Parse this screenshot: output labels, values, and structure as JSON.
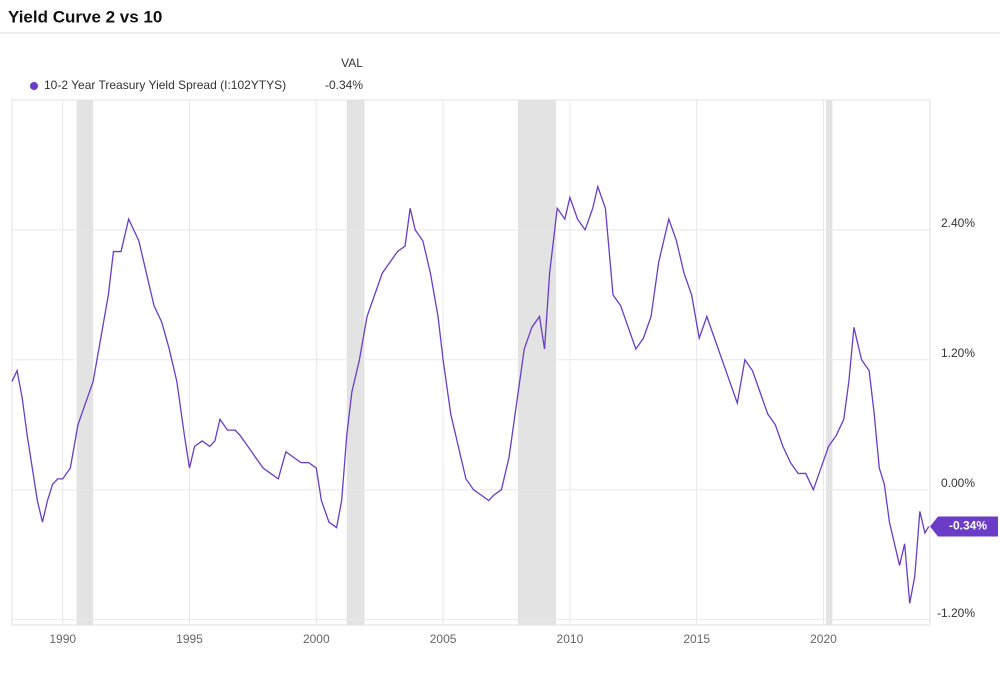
{
  "chart_data": {
    "type": "line",
    "title": "Yield Curve 2 vs 10",
    "legend_header": "VAL",
    "x": [
      1988.0,
      1988.2,
      1988.4,
      1988.6,
      1988.8,
      1989.0,
      1989.2,
      1989.4,
      1989.6,
      1989.8,
      1990.0,
      1990.3,
      1990.6,
      1990.9,
      1991.2,
      1991.5,
      1991.8,
      1992.0,
      1992.3,
      1992.6,
      1992.8,
      1993.0,
      1993.3,
      1993.6,
      1993.9,
      1994.2,
      1994.5,
      1994.8,
      1995.0,
      1995.2,
      1995.5,
      1995.8,
      1996.0,
      1996.2,
      1996.5,
      1996.8,
      1997.0,
      1997.3,
      1997.6,
      1997.9,
      1998.2,
      1998.5,
      1998.8,
      1999.1,
      1999.4,
      1999.7,
      2000.0,
      2000.2,
      2000.5,
      2000.8,
      2001.0,
      2001.2,
      2001.4,
      2001.7,
      2002.0,
      2002.3,
      2002.6,
      2002.9,
      2003.2,
      2003.5,
      2003.7,
      2003.9,
      2004.2,
      2004.5,
      2004.8,
      2005.0,
      2005.3,
      2005.6,
      2005.9,
      2006.2,
      2006.5,
      2006.8,
      2007.0,
      2007.3,
      2007.6,
      2007.9,
      2008.2,
      2008.5,
      2008.8,
      2009.0,
      2009.2,
      2009.5,
      2009.8,
      2010.0,
      2010.3,
      2010.6,
      2010.9,
      2011.1,
      2011.4,
      2011.7,
      2012.0,
      2012.3,
      2012.6,
      2012.9,
      2013.2,
      2013.5,
      2013.9,
      2014.2,
      2014.5,
      2014.8,
      2015.1,
      2015.4,
      2015.7,
      2016.0,
      2016.3,
      2016.6,
      2016.9,
      2017.2,
      2017.5,
      2017.8,
      2018.1,
      2018.4,
      2018.7,
      2019.0,
      2019.3,
      2019.6,
      2019.9,
      2020.2,
      2020.5,
      2020.8,
      2021.0,
      2021.2,
      2021.5,
      2021.8,
      2022.0,
      2022.2,
      2022.4,
      2022.6,
      2022.8,
      2023.0,
      2023.2,
      2023.4,
      2023.6,
      2023.8,
      2024.0,
      2024.15
    ],
    "series": [
      {
        "name": "10-2 Year Treasury Yield Spread (I:102YTYS)",
        "color": "#6a3cc7",
        "values": [
          1.0,
          1.1,
          0.85,
          0.5,
          0.2,
          -0.1,
          -0.3,
          -0.1,
          0.05,
          0.1,
          0.1,
          0.2,
          0.6,
          0.8,
          1.0,
          1.4,
          1.8,
          2.2,
          2.2,
          2.5,
          2.4,
          2.3,
          2.0,
          1.7,
          1.55,
          1.3,
          1.0,
          0.5,
          0.2,
          0.4,
          0.45,
          0.4,
          0.45,
          0.65,
          0.55,
          0.55,
          0.5,
          0.4,
          0.3,
          0.2,
          0.15,
          0.1,
          0.35,
          0.3,
          0.25,
          0.25,
          0.2,
          -0.1,
          -0.3,
          -0.35,
          -0.1,
          0.5,
          0.9,
          1.2,
          1.6,
          1.8,
          2.0,
          2.1,
          2.2,
          2.25,
          2.6,
          2.4,
          2.3,
          2.0,
          1.6,
          1.2,
          0.7,
          0.4,
          0.1,
          0.0,
          -0.05,
          -0.1,
          -0.05,
          0.0,
          0.3,
          0.8,
          1.3,
          1.5,
          1.6,
          1.3,
          2.0,
          2.6,
          2.5,
          2.7,
          2.5,
          2.4,
          2.6,
          2.8,
          2.6,
          1.8,
          1.7,
          1.5,
          1.3,
          1.4,
          1.6,
          2.1,
          2.5,
          2.3,
          2.0,
          1.8,
          1.4,
          1.6,
          1.4,
          1.2,
          1.0,
          0.8,
          1.2,
          1.1,
          0.9,
          0.7,
          0.6,
          0.4,
          0.25,
          0.15,
          0.15,
          0.0,
          0.2,
          0.4,
          0.5,
          0.65,
          1.0,
          1.5,
          1.2,
          1.1,
          0.7,
          0.2,
          0.05,
          -0.3,
          -0.5,
          -0.7,
          -0.5,
          -1.05,
          -0.8,
          -0.2,
          -0.4,
          -0.34
        ],
        "current": {
          "value": -0.34,
          "label": "-0.34%"
        }
      }
    ],
    "recessions": [
      [
        1990.55,
        1991.2
      ],
      [
        2001.2,
        2001.9
      ],
      [
        2007.95,
        2009.45
      ],
      [
        2020.1,
        2020.35
      ]
    ],
    "xlim": [
      1988.0,
      2024.2
    ],
    "xticks": [
      1990,
      1995,
      2000,
      2005,
      2010,
      2015,
      2020
    ],
    "ylim": [
      -1.25,
      3.6
    ],
    "yticks": [
      {
        "value": 2.4,
        "label": "2.40%"
      },
      {
        "value": 1.2,
        "label": "1.20%"
      },
      {
        "value": 0,
        "label": "0.00%"
      },
      {
        "value": -1.2,
        "label": "-1.20%"
      }
    ],
    "grid": true
  }
}
